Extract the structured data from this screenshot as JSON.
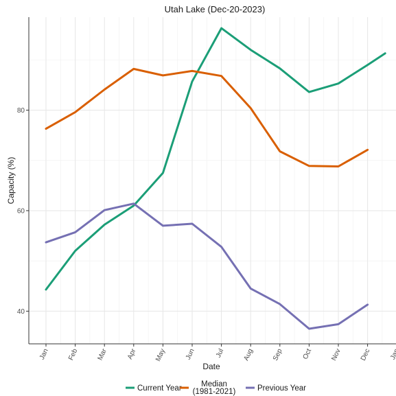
{
  "chart_data": {
    "type": "line",
    "title": "Utah Lake (Dec-20-2023)",
    "xlabel": "Date",
    "ylabel": "Capacity (%)",
    "x_ticks": [
      "Jan",
      "Feb",
      "Mar",
      "Apr",
      "May",
      "Jun",
      "Jul",
      "Aug",
      "Sep",
      "Oct",
      "Nov",
      "Dec",
      "Jan"
    ],
    "y_ticks": [
      40,
      60,
      80
    ],
    "ylim": [
      33.5,
      98.5
    ],
    "grid": true,
    "legend_position": "bottom",
    "series": [
      {
        "name": "Current Year",
        "color": "#1b9e77",
        "x": [
          0,
          1,
          2,
          3,
          4,
          5,
          6,
          7,
          8,
          9,
          10,
          11,
          11.6
        ],
        "values": [
          44.3,
          52.0,
          57.2,
          61.0,
          67.5,
          85.7,
          96.3,
          92.0,
          88.3,
          83.6,
          85.3,
          89.0,
          91.3
        ]
      },
      {
        "name": "Median\n(1981-2021)",
        "color": "#d95f02",
        "x": [
          0,
          1,
          2,
          3,
          4,
          5,
          6,
          7,
          8,
          9,
          10,
          11
        ],
        "values": [
          76.3,
          79.6,
          84.1,
          88.2,
          86.9,
          87.8,
          86.8,
          80.4,
          71.8,
          68.9,
          68.8,
          72.1
        ]
      },
      {
        "name": "Previous Year",
        "color": "#7570b3",
        "x": [
          0,
          1,
          2,
          3,
          4,
          5,
          6,
          7,
          8,
          9,
          10,
          11
        ],
        "values": [
          53.7,
          55.7,
          60.1,
          61.4,
          57.0,
          57.4,
          52.8,
          44.5,
          41.4,
          36.5,
          37.4,
          41.3
        ]
      }
    ]
  }
}
